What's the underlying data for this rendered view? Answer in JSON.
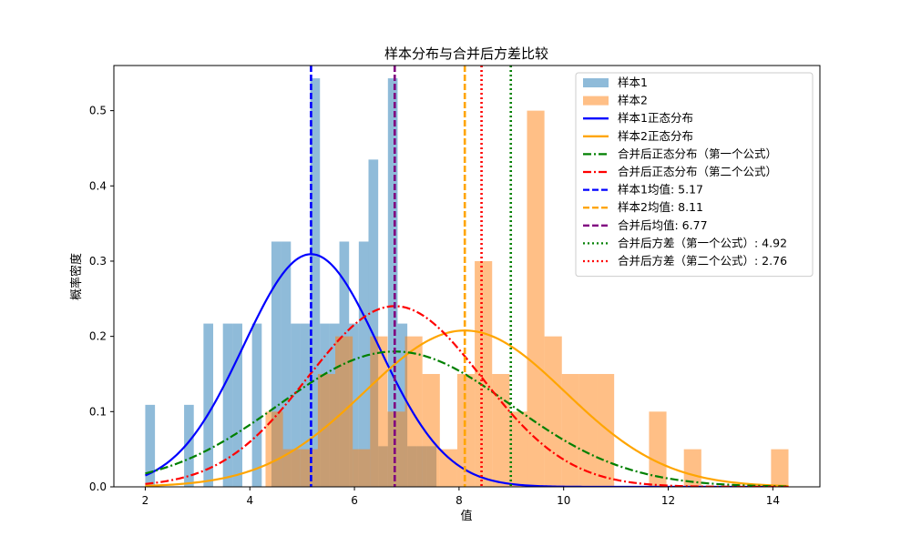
{
  "chart_data": {
    "type": "histogram+line",
    "title": "样本分布与合并后方差比较",
    "xlabel": "值",
    "ylabel": "概率密度",
    "xlim": [
      1.4,
      14.9
    ],
    "ylim": [
      0,
      0.56
    ],
    "xticks": [
      2,
      4,
      6,
      8,
      10,
      12,
      14
    ],
    "xtick_labels": [
      "2",
      "4",
      "6",
      "8",
      "10",
      "12",
      "14"
    ],
    "yticks": [
      0.0,
      0.1,
      0.2,
      0.3,
      0.4,
      0.5
    ],
    "ytick_labels": [
      "0.0",
      "0.1",
      "0.2",
      "0.3",
      "0.4",
      "0.5"
    ],
    "legend_position": "top-right",
    "histograms": [
      {
        "name": "样本1",
        "color": "#1f77b4",
        "alpha": 0.5,
        "bin_start": 2.0,
        "bin_width": 0.1856,
        "densities": [
          0.109,
          0,
          0,
          0,
          0.109,
          0,
          0.217,
          0,
          0.217,
          0.217,
          0,
          0.217,
          0,
          0.326,
          0.326,
          0.217,
          0.217,
          0.543,
          0.217,
          0.217,
          0.326,
          0.217,
          0.326,
          0.435,
          0.054,
          0.543,
          0.217,
          0.054,
          0.054,
          0.054
        ]
      },
      {
        "name": "样本2",
        "color": "#ff7f0e",
        "alpha": 0.5,
        "bin_start": 4.3,
        "bin_width": 0.3333,
        "densities": [
          0.1,
          0.05,
          0.05,
          0.15,
          0.2,
          0.05,
          0.2,
          0.1,
          0.2,
          0.15,
          0.05,
          0.15,
          0.3,
          0.15,
          0.1,
          0.5,
          0.2,
          0.15,
          0.15,
          0.15,
          0,
          0,
          0.1,
          0,
          0.05,
          0,
          0,
          0,
          0,
          0.05
        ]
      }
    ],
    "curves": [
      {
        "name": "样本1正态分布",
        "mean": 5.17,
        "std": 1.29,
        "color": "#0000ff",
        "dash": "solid"
      },
      {
        "name": "样本2正态分布",
        "mean": 8.11,
        "std": 1.92,
        "color": "#ffa500",
        "dash": "solid"
      },
      {
        "name": "合并后正态分布（第一个公式）",
        "mean": 6.77,
        "std": 2.218,
        "color": "#008000",
        "dash": "dashdot"
      },
      {
        "name": "合并后正态分布（第二个公式）",
        "mean": 6.77,
        "std": 1.661,
        "color": "#ff0000",
        "dash": "dashdot"
      }
    ],
    "vlines": [
      {
        "name": "样本1均值: 5.17",
        "x": 5.17,
        "color": "#0000ff",
        "dash": "dashed"
      },
      {
        "name": "样本2均值: 8.11",
        "x": 8.11,
        "color": "#ffa500",
        "dash": "dashed"
      },
      {
        "name": "合并后均值: 6.77",
        "x": 6.77,
        "color": "#800080",
        "dash": "dashed"
      },
      {
        "name": "合并后方差（第一个公式）: 4.92",
        "x": 8.99,
        "color": "#008000",
        "dash": "dotted"
      },
      {
        "name": "合并后方差（第二个公式）: 2.76",
        "x": 8.43,
        "color": "#ff0000",
        "dash": "dotted"
      }
    ],
    "legend": [
      {
        "label": "样本1",
        "kind": "patch",
        "color": "#1f77b4",
        "alpha": 0.5
      },
      {
        "label": "样本2",
        "kind": "patch",
        "color": "#ff7f0e",
        "alpha": 0.5
      },
      {
        "label": "样本1正态分布",
        "kind": "line",
        "color": "#0000ff",
        "dash": "solid"
      },
      {
        "label": "样本2正态分布",
        "kind": "line",
        "color": "#ffa500",
        "dash": "solid"
      },
      {
        "label": "合并后正态分布（第一个公式）",
        "kind": "line",
        "color": "#008000",
        "dash": "dashdot"
      },
      {
        "label": "合并后正态分布（第二个公式）",
        "kind": "line",
        "color": "#ff0000",
        "dash": "dashdot"
      },
      {
        "label": "样本1均值: 5.17",
        "kind": "line",
        "color": "#0000ff",
        "dash": "dashed"
      },
      {
        "label": "样本2均值: 8.11",
        "kind": "line",
        "color": "#ffa500",
        "dash": "dashed"
      },
      {
        "label": "合并后均值: 6.77",
        "kind": "line",
        "color": "#800080",
        "dash": "dashed"
      },
      {
        "label": "合并后方差（第一个公式）: 4.92",
        "kind": "line",
        "color": "#008000",
        "dash": "dotted"
      },
      {
        "label": "合并后方差（第二个公式）: 2.76",
        "kind": "line",
        "color": "#ff0000",
        "dash": "dotted"
      }
    ]
  }
}
